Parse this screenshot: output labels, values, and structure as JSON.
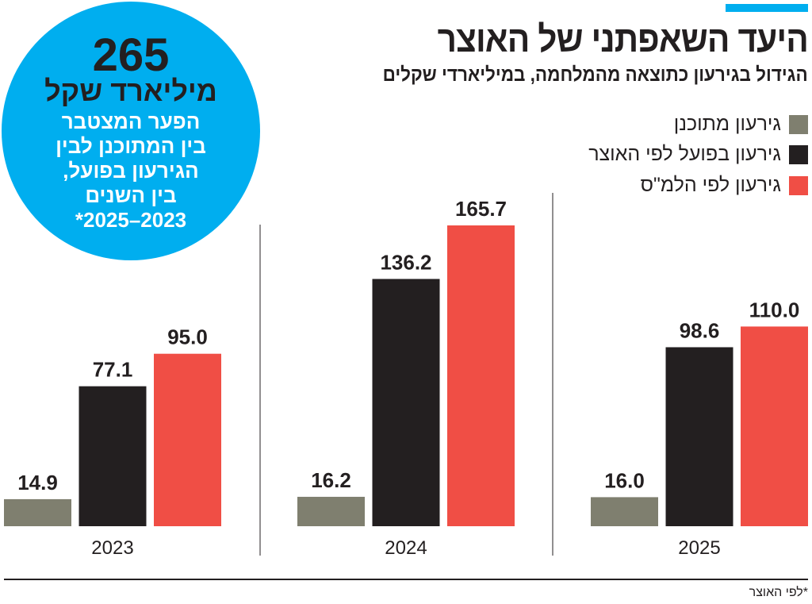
{
  "header": {
    "title": "היעד השאפתני של האוצר",
    "subtitle": "הגידול בגירעון כתוצאה מהמלחמה, במיליארדי שקלים"
  },
  "callout": {
    "value": "265",
    "unit": "מיליארד שקל",
    "lines": [
      "הפער המצטבר",
      "בין המתוכנן לבין",
      "הגירעון בפועל,",
      "בין השנים",
      "*2025–2023"
    ]
  },
  "footnote": "*לפי האוצר",
  "colors": {
    "accent": "#00aeef",
    "planned": "#7f7f6f",
    "treasury": "#231f20",
    "cbs": "#f04e45"
  },
  "chart_data": {
    "type": "bar",
    "title": "היעד השאפתני של האוצר",
    "subtitle": "הגידול בגירעון כתוצאה מהמלחמה, במיליארדי שקלים",
    "categories": [
      "2023",
      "2024",
      "2025"
    ],
    "series": [
      {
        "name": "גירעון מתוכנן",
        "color": "#7f7f6f",
        "values": [
          14.9,
          16.2,
          16.0
        ],
        "labels": [
          "14.9",
          "16.2",
          "16.0"
        ]
      },
      {
        "name": "גירעון בפועל לפי האוצר",
        "color": "#231f20",
        "values": [
          77.1,
          136.2,
          98.6
        ],
        "labels": [
          "77.1",
          "136.2",
          "98.6"
        ]
      },
      {
        "name": "גירעון לפי הלמ\"ס",
        "color": "#f04e45",
        "values": [
          95.0,
          165.7,
          110.0
        ],
        "labels": [
          "95.0",
          "165.7",
          "110.0"
        ]
      }
    ],
    "legend": "top-right",
    "grid": false,
    "ylim": [
      0,
      165.7
    ]
  }
}
